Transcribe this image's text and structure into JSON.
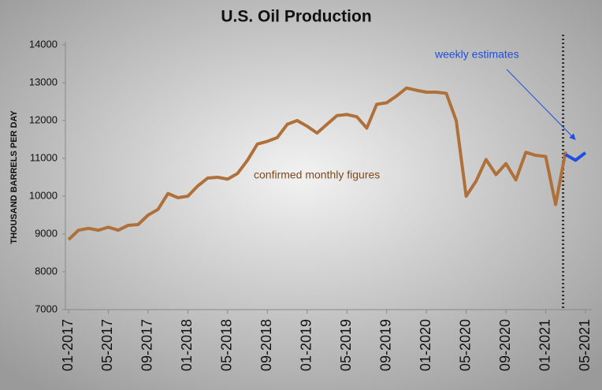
{
  "chart_data": {
    "type": "line",
    "title": "U.S. Oil Production",
    "y_label": "THOUSAND BARRELS PER DAY",
    "categories": [
      "01-2017",
      null,
      null,
      null,
      "05-2017",
      null,
      null,
      null,
      "09-2017",
      null,
      null,
      null,
      "01-2018",
      null,
      null,
      null,
      "05-2018",
      null,
      null,
      null,
      "09-2018",
      null,
      null,
      null,
      "01-2019",
      null,
      null,
      null,
      "05-2019",
      null,
      null,
      null,
      "09-2019",
      null,
      null,
      null,
      "01-2020",
      null,
      null,
      null,
      "05-2020",
      null,
      null,
      null,
      "09-2020",
      null,
      null,
      null,
      "01-2021",
      null,
      null,
      null,
      "05-2021"
    ],
    "series": [
      {
        "color": "#b0703a",
        "values": [
          8850,
          9100,
          9150,
          9100,
          9180,
          9100,
          9230,
          9250,
          9500,
          9650,
          10070,
          9960,
          10000,
          10270,
          10480,
          10500,
          10450,
          10600,
          10950,
          11380,
          11450,
          11550,
          11900,
          12000,
          11850,
          11670,
          11900,
          12130,
          12160,
          12100,
          11800,
          12430,
          12470,
          12650,
          12860,
          12800,
          12750,
          12750,
          12720,
          12000,
          10000,
          10400,
          10970,
          10570,
          10860,
          10430,
          11160,
          11080,
          11050,
          9780,
          11180,
          null,
          null
        ]
      },
      {
        "color": "#1f4fe0",
        "values": [
          null,
          null,
          null,
          null,
          null,
          null,
          null,
          null,
          null,
          null,
          null,
          null,
          null,
          null,
          null,
          null,
          null,
          null,
          null,
          null,
          null,
          null,
          null,
          null,
          null,
          null,
          null,
          null,
          null,
          null,
          null,
          null,
          null,
          null,
          null,
          null,
          null,
          null,
          null,
          null,
          null,
          null,
          null,
          null,
          null,
          null,
          null,
          null,
          null,
          null,
          11100,
          10950,
          11150
        ]
      }
    ],
    "ylim": [
      7000,
      14000
    ],
    "yticks": [
      7000,
      8000,
      9000,
      10000,
      11000,
      12000,
      13000,
      14000
    ],
    "annotations": [
      "weekly estimates",
      "confirmed monthly figures"
    ]
  }
}
